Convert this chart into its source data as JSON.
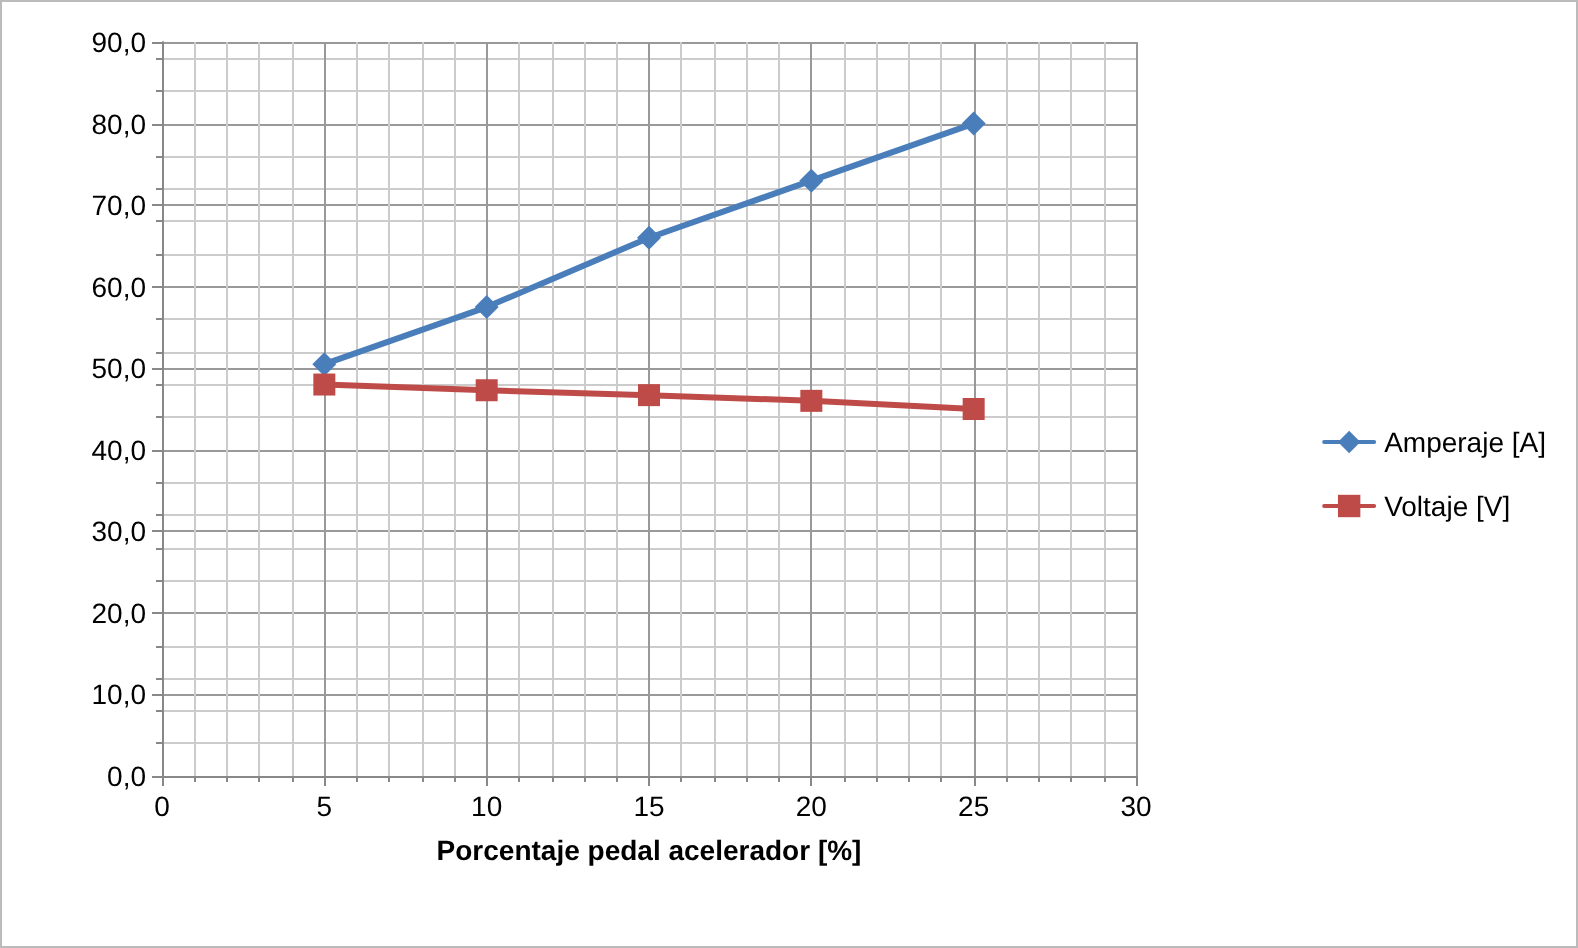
{
  "chart_data": {
    "type": "line",
    "xlabel": "Porcentaje pedal acelerador [%]",
    "x": [
      5,
      10,
      15,
      20,
      25
    ],
    "series": [
      {
        "name": "Amperaje [A]",
        "color": "#4a7ebb",
        "marker": "diamond",
        "values": [
          50.5,
          57.5,
          66,
          73,
          80
        ]
      },
      {
        "name": "Voltaje [V]",
        "color": "#be4b48",
        "marker": "square",
        "values": [
          48,
          47.3,
          46.7,
          46,
          45
        ]
      }
    ],
    "xlim": [
      0,
      30
    ],
    "xticks": [
      0,
      5,
      10,
      15,
      20,
      25,
      30
    ],
    "ylim": [
      0,
      90
    ],
    "yticks": [
      {
        "value": 0,
        "label": "0,0"
      },
      {
        "value": 10,
        "label": "10,0"
      },
      {
        "value": 20,
        "label": "20,0"
      },
      {
        "value": 30,
        "label": "30,0"
      },
      {
        "value": 40,
        "label": "40,0"
      },
      {
        "value": 50,
        "label": "50,0"
      },
      {
        "value": 60,
        "label": "60,0"
      },
      {
        "value": 70,
        "label": "70,0"
      },
      {
        "value": 80,
        "label": "80,0"
      },
      {
        "value": 90,
        "label": "90,0"
      }
    ],
    "grid": true,
    "legend": "right",
    "line_style": "solid"
  }
}
